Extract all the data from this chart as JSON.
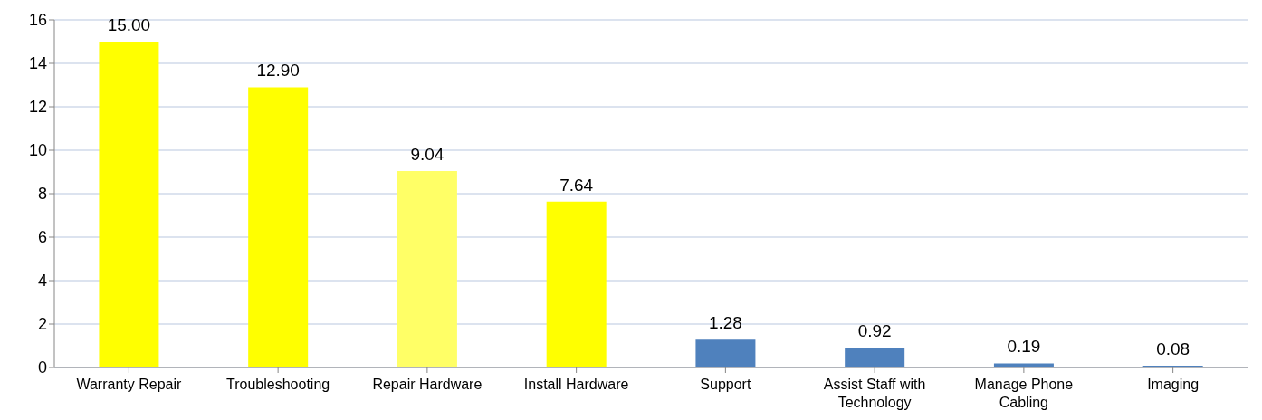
{
  "chart_data": {
    "type": "bar",
    "categories": [
      "Warranty Repair",
      "Troubleshooting",
      "Repair Hardware",
      "Install Hardware",
      "Support",
      "Assist Staff with Technology",
      "Manage Phone Cabling",
      "Imaging"
    ],
    "values": [
      15.0,
      12.9,
      9.04,
      7.64,
      1.28,
      0.92,
      0.19,
      0.08
    ],
    "colors": [
      "#ffff00",
      "#ffff00",
      "#ffff66",
      "#ffff00",
      "#4f81bd",
      "#4f81bd",
      "#4f81bd",
      "#4f81bd"
    ],
    "value_labels": [
      "15.00",
      "12.90",
      "9.04",
      "7.64",
      "1.28",
      "0.92",
      "0.19",
      "0.08"
    ],
    "ylim": [
      0,
      16
    ],
    "yticks": [
      0,
      2,
      4,
      6,
      8,
      10,
      12,
      14,
      16
    ],
    "grid": "y"
  }
}
